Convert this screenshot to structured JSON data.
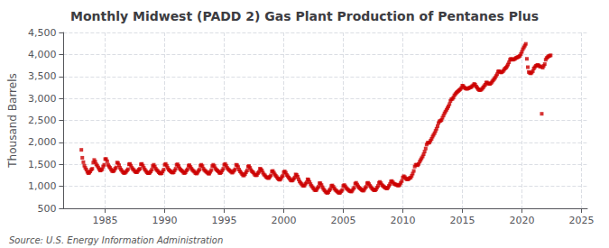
{
  "chart_data": {
    "type": "scatter",
    "title": "Monthly Midwest (PADD 2) Gas Plant Production of Pentanes Plus",
    "ylabel": "Thousand Barrels",
    "annotations": [
      "Source: U.S. Energy Information Administration"
    ],
    "color": "#cc0000",
    "marker": "square",
    "grid": true,
    "xlim": [
      1981.5,
      2025.5
    ],
    "ylim": [
      500,
      4500
    ],
    "xticks": [
      1985,
      1990,
      1995,
      2000,
      2005,
      2010,
      2015,
      2020,
      2025
    ],
    "yticks": [
      500,
      {
        "value": 1000,
        "label": "1,000"
      },
      {
        "value": 1500,
        "label": "1,500"
      },
      {
        "value": 2000,
        "label": "2,000"
      },
      {
        "value": 2500,
        "label": "2,500"
      },
      {
        "value": 3000,
        "label": "3,000"
      },
      {
        "value": 3500,
        "label": "3,500"
      },
      {
        "value": 4000,
        "label": "4,000"
      },
      {
        "value": 4500,
        "label": "4,500"
      }
    ],
    "x": [
      1983.0,
      1983.08,
      1983.17,
      1983.25,
      1983.33,
      1983.42,
      1983.5,
      1983.58,
      1983.67,
      1983.75,
      1983.83,
      1983.92,
      1984.0,
      1984.08,
      1984.17,
      1984.25,
      1984.33,
      1984.42,
      1984.5,
      1984.58,
      1984.67,
      1984.75,
      1984.83,
      1984.92,
      1985.0,
      1985.08,
      1985.17,
      1985.25,
      1985.33,
      1985.42,
      1985.5,
      1985.58,
      1985.67,
      1985.75,
      1985.83,
      1985.92,
      1986.0,
      1986.08,
      1986.17,
      1986.25,
      1986.33,
      1986.42,
      1986.5,
      1986.58,
      1986.67,
      1986.75,
      1986.83,
      1986.92,
      1987.0,
      1987.08,
      1987.17,
      1987.25,
      1987.33,
      1987.42,
      1987.5,
      1987.58,
      1987.67,
      1987.75,
      1987.83,
      1987.92,
      1988.0,
      1988.08,
      1988.17,
      1988.25,
      1988.33,
      1988.42,
      1988.5,
      1988.58,
      1988.67,
      1988.75,
      1988.83,
      1988.92,
      1989.0,
      1989.08,
      1989.17,
      1989.25,
      1989.33,
      1989.42,
      1989.5,
      1989.58,
      1989.67,
      1989.75,
      1989.83,
      1989.92,
      1990.0,
      1990.08,
      1990.17,
      1990.25,
      1990.33,
      1990.42,
      1990.5,
      1990.58,
      1990.67,
      1990.75,
      1990.83,
      1990.92,
      1991.0,
      1991.08,
      1991.17,
      1991.25,
      1991.33,
      1991.42,
      1991.5,
      1991.58,
      1991.67,
      1991.75,
      1991.83,
      1991.92,
      1992.0,
      1992.08,
      1992.17,
      1992.25,
      1992.33,
      1992.42,
      1992.5,
      1992.58,
      1992.67,
      1992.75,
      1992.83,
      1992.92,
      1993.0,
      1993.08,
      1993.17,
      1993.25,
      1993.33,
      1993.42,
      1993.5,
      1993.58,
      1993.67,
      1993.75,
      1993.83,
      1993.92,
      1994.0,
      1994.08,
      1994.17,
      1994.25,
      1994.33,
      1994.42,
      1994.5,
      1994.58,
      1994.67,
      1994.75,
      1994.83,
      1994.92,
      1995.0,
      1995.08,
      1995.17,
      1995.25,
      1995.33,
      1995.42,
      1995.5,
      1995.58,
      1995.67,
      1995.75,
      1995.83,
      1995.92,
      1996.0,
      1996.08,
      1996.17,
      1996.25,
      1996.33,
      1996.42,
      1996.5,
      1996.58,
      1996.67,
      1996.75,
      1996.83,
      1996.92,
      1997.0,
      1997.08,
      1997.17,
      1997.25,
      1997.33,
      1997.42,
      1997.5,
      1997.58,
      1997.67,
      1997.75,
      1997.83,
      1997.92,
      1998.0,
      1998.08,
      1998.17,
      1998.25,
      1998.33,
      1998.42,
      1998.5,
      1998.58,
      1998.67,
      1998.75,
      1998.83,
      1998.92,
      1999.0,
      1999.08,
      1999.17,
      1999.25,
      1999.33,
      1999.42,
      1999.5,
      1999.58,
      1999.67,
      1999.75,
      1999.83,
      1999.92,
      2000.0,
      2000.08,
      2000.17,
      2000.25,
      2000.33,
      2000.42,
      2000.5,
      2000.58,
      2000.67,
      2000.75,
      2000.83,
      2000.92,
      2001.0,
      2001.08,
      2001.17,
      2001.25,
      2001.33,
      2001.42,
      2001.5,
      2001.58,
      2001.67,
      2001.75,
      2001.83,
      2001.92,
      2002.0,
      2002.08,
      2002.17,
      2002.25,
      2002.33,
      2002.42,
      2002.5,
      2002.58,
      2002.67,
      2002.75,
      2002.83,
      2002.92,
      2003.0,
      2003.08,
      2003.17,
      2003.25,
      2003.33,
      2003.42,
      2003.5,
      2003.58,
      2003.67,
      2003.75,
      2003.83,
      2003.92,
      2004.0,
      2004.08,
      2004.17,
      2004.25,
      2004.33,
      2004.42,
      2004.5,
      2004.58,
      2004.67,
      2004.75,
      2004.83,
      2004.92,
      2005.0,
      2005.08,
      2005.17,
      2005.25,
      2005.33,
      2005.42,
      2005.5,
      2005.58,
      2005.67,
      2005.75,
      2005.83,
      2005.92,
      2006.0,
      2006.08,
      2006.17,
      2006.25,
      2006.33,
      2006.42,
      2006.5,
      2006.58,
      2006.67,
      2006.75,
      2006.83,
      2006.92,
      2007.0,
      2007.08,
      2007.17,
      2007.25,
      2007.33,
      2007.42,
      2007.5,
      2007.58,
      2007.67,
      2007.75,
      2007.83,
      2007.92,
      2008.0,
      2008.08,
      2008.17,
      2008.25,
      2008.33,
      2008.42,
      2008.5,
      2008.58,
      2008.67,
      2008.75,
      2008.83,
      2008.92,
      2009.0,
      2009.08,
      2009.17,
      2009.25,
      2009.33,
      2009.42,
      2009.5,
      2009.58,
      2009.67,
      2009.75,
      2009.83,
      2009.92,
      2010.0,
      2010.08,
      2010.17,
      2010.25,
      2010.33,
      2010.42,
      2010.5,
      2010.58,
      2010.67,
      2010.75,
      2010.83,
      2010.92,
      2011.0,
      2011.08,
      2011.17,
      2011.25,
      2011.33,
      2011.42,
      2011.5,
      2011.58,
      2011.67,
      2011.75,
      2011.83,
      2011.92,
      2012.0,
      2012.08,
      2012.17,
      2012.25,
      2012.33,
      2012.42,
      2012.5,
      2012.58,
      2012.67,
      2012.75,
      2012.83,
      2012.92,
      2013.0,
      2013.08,
      2013.17,
      2013.25,
      2013.33,
      2013.42,
      2013.5,
      2013.58,
      2013.67,
      2013.75,
      2013.83,
      2013.92,
      2014.0,
      2014.08,
      2014.17,
      2014.25,
      2014.33,
      2014.42,
      2014.5,
      2014.58,
      2014.67,
      2014.75,
      2014.83,
      2014.92,
      2015.0,
      2015.08,
      2015.17,
      2015.25,
      2015.33,
      2015.42,
      2015.5,
      2015.58,
      2015.67,
      2015.75,
      2015.83,
      2015.92,
      2016.0,
      2016.08,
      2016.17,
      2016.25,
      2016.33,
      2016.42,
      2016.5,
      2016.58,
      2016.67,
      2016.75,
      2016.83,
      2016.92,
      2017.0,
      2017.08,
      2017.17,
      2017.25,
      2017.33,
      2017.42,
      2017.5,
      2017.58,
      2017.67,
      2017.75,
      2017.83,
      2017.92,
      2018.0,
      2018.08,
      2018.17,
      2018.25,
      2018.33,
      2018.42,
      2018.5,
      2018.58,
      2018.67,
      2018.75,
      2018.83,
      2018.92,
      2019.0,
      2019.08,
      2019.17,
      2019.25,
      2019.33,
      2019.42,
      2019.5,
      2019.58,
      2019.67,
      2019.75,
      2019.83,
      2019.92,
      2020.0,
      2020.08,
      2020.17,
      2020.25,
      2020.33,
      2020.42,
      2020.5,
      2020.58,
      2020.67,
      2020.75,
      2020.83,
      2020.92,
      2021.0,
      2021.08,
      2021.17,
      2021.25,
      2021.33,
      2021.42,
      2021.5,
      2021.58,
      2021.67,
      2021.75,
      2021.83,
      2021.92,
      2022.0,
      2022.08,
      2022.17,
      2022.25,
      2022.33,
      2022.42
    ],
    "values": [
      1830,
      1650,
      1550,
      1470,
      1420,
      1380,
      1330,
      1300,
      1310,
      1340,
      1380,
      1400,
      1540,
      1600,
      1560,
      1500,
      1470,
      1430,
      1390,
      1360,
      1370,
      1390,
      1450,
      1490,
      1620,
      1620,
      1570,
      1490,
      1450,
      1420,
      1380,
      1350,
      1340,
      1360,
      1400,
      1430,
      1540,
      1530,
      1480,
      1420,
      1380,
      1350,
      1320,
      1300,
      1310,
      1330,
      1360,
      1390,
      1500,
      1510,
      1470,
      1420,
      1390,
      1370,
      1340,
      1320,
      1320,
      1350,
      1380,
      1400,
      1500,
      1510,
      1470,
      1420,
      1380,
      1350,
      1320,
      1300,
      1300,
      1310,
      1340,
      1380,
      1460,
      1490,
      1450,
      1400,
      1370,
      1350,
      1320,
      1300,
      1290,
      1300,
      1340,
      1380,
      1490,
      1510,
      1470,
      1420,
      1380,
      1360,
      1340,
      1320,
      1310,
      1320,
      1360,
      1400,
      1490,
      1500,
      1460,
      1410,
      1380,
      1360,
      1340,
      1310,
      1300,
      1320,
      1360,
      1390,
      1470,
      1480,
      1440,
      1400,
      1370,
      1350,
      1330,
      1300,
      1290,
      1310,
      1350,
      1380,
      1470,
      1490,
      1460,
      1400,
      1370,
      1350,
      1330,
      1310,
      1290,
      1290,
      1330,
      1370,
      1460,
      1490,
      1460,
      1410,
      1380,
      1360,
      1340,
      1310,
      1300,
      1320,
      1360,
      1400,
      1490,
      1510,
      1470,
      1420,
      1390,
      1370,
      1350,
      1330,
      1310,
      1330,
      1360,
      1390,
      1490,
      1480,
      1440,
      1380,
      1340,
      1310,
      1280,
      1250,
      1250,
      1280,
      1320,
      1360,
      1450,
      1460,
      1420,
      1370,
      1340,
      1320,
      1290,
      1260,
      1250,
      1260,
      1300,
      1330,
      1400,
      1390,
      1360,
      1310,
      1270,
      1250,
      1220,
      1200,
      1190,
      1190,
      1220,
      1250,
      1340,
      1350,
      1310,
      1270,
      1240,
      1210,
      1180,
      1160,
      1150,
      1170,
      1210,
      1240,
      1320,
      1340,
      1310,
      1260,
      1230,
      1200,
      1170,
      1140,
      1130,
      1140,
      1170,
      1200,
      1270,
      1260,
      1220,
      1160,
      1110,
      1080,
      1050,
      1020,
      1010,
      1020,
      1060,
      1090,
      1160,
      1150,
      1100,
      1050,
      1010,
      980,
      950,
      920,
      910,
      920,
      960,
      990,
      1070,
      1070,
      1030,
      980,
      940,
      910,
      880,
      860,
      850,
      870,
      910,
      940,
      1010,
      1020,
      990,
      950,
      920,
      900,
      880,
      860,
      850,
      860,
      890,
      920,
      1010,
      1030,
      1000,
      960,
      940,
      920,
      900,
      890,
      880,
      900,
      940,
      970,
      1060,
      1080,
      1040,
      1000,
      970,
      950,
      930,
      910,
      900,
      920,
      960,
      990,
      1070,
      1080,
      1050,
      1010,
      980,
      950,
      930,
      910,
      910,
      930,
      970,
      1010,
      1080,
      1100,
      1070,
      1030,
      1010,
      990,
      970,
      960,
      950,
      970,
      1010,
      1050,
      1110,
      1120,
      1090,
      1060,
      1050,
      1040,
      1030,
      1020,
      1020,
      1040,
      1080,
      1120,
      1200,
      1230,
      1210,
      1180,
      1160,
      1160,
      1170,
      1190,
      1200,
      1240,
      1290,
      1350,
      1450,
      1490,
      1490,
      1480,
      1510,
      1560,
      1600,
      1640,
      1680,
      1730,
      1790,
      1860,
      1950,
      1990,
      1990,
      2000,
      2040,
      2080,
      2130,
      2170,
      2210,
      2260,
      2310,
      2370,
      2440,
      2480,
      2490,
      2510,
      2560,
      2610,
      2660,
      2700,
      2740,
      2780,
      2820,
      2870,
      2940,
      2980,
      2990,
      3020,
      3070,
      3100,
      3130,
      3150,
      3170,
      3190,
      3210,
      3240,
      3290,
      3280,
      3250,
      3230,
      3220,
      3220,
      3230,
      3240,
      3250,
      3260,
      3280,
      3300,
      3330,
      3310,
      3270,
      3240,
      3210,
      3190,
      3190,
      3200,
      3220,
      3250,
      3280,
      3310,
      3360,
      3360,
      3340,
      3330,
      3330,
      3350,
      3380,
      3410,
      3440,
      3470,
      3510,
      3550,
      3610,
      3620,
      3600,
      3590,
      3600,
      3620,
      3650,
      3680,
      3700,
      3730,
      3770,
      3820,
      3880,
      3900,
      3890,
      3880,
      3890,
      3900,
      3920,
      3930,
      3940,
      3950,
      3970,
      4010,
      4060,
      4120,
      4160,
      4200,
      4240,
      3900,
      3710,
      3600,
      3580,
      3570,
      3590,
      3620,
      3680,
      3710,
      3740,
      3750,
      3760,
      3750,
      3730,
      3720,
      2650,
      3700,
      3740,
      3780,
      3880,
      3920,
      3940,
      3960,
      3970,
      3980
    ]
  }
}
